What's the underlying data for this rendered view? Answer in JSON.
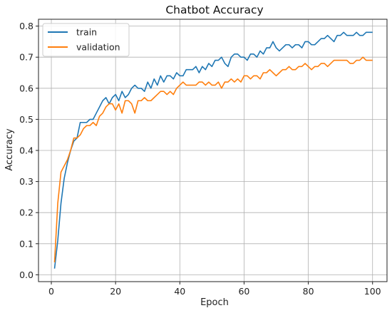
{
  "chart_data": {
    "type": "line",
    "title": "Chatbot Accuracy",
    "xlabel": "Epoch",
    "ylabel": "Accuracy",
    "xlim": [
      -4,
      104.5
    ],
    "ylim": [
      -0.022,
      0.822
    ],
    "xticks": [
      0,
      20,
      40,
      60,
      80,
      100
    ],
    "yticks": [
      0.0,
      0.1,
      0.2,
      0.3,
      0.4,
      0.5,
      0.6,
      0.7,
      0.8
    ],
    "grid": true,
    "legend_position": "top-left",
    "colors": {
      "train": "#1f77b4",
      "validation": "#ff7f0e"
    },
    "x": [
      1,
      2,
      3,
      4,
      5,
      6,
      7,
      8,
      9,
      10,
      11,
      12,
      13,
      14,
      15,
      16,
      17,
      18,
      19,
      20,
      21,
      22,
      23,
      24,
      25,
      26,
      27,
      28,
      29,
      30,
      31,
      32,
      33,
      34,
      35,
      36,
      37,
      38,
      39,
      40,
      41,
      42,
      43,
      44,
      45,
      46,
      47,
      48,
      49,
      50,
      51,
      52,
      53,
      54,
      55,
      56,
      57,
      58,
      59,
      60,
      61,
      62,
      63,
      64,
      65,
      66,
      67,
      68,
      69,
      70,
      71,
      72,
      73,
      74,
      75,
      76,
      77,
      78,
      79,
      80,
      81,
      82,
      83,
      84,
      85,
      86,
      87,
      88,
      89,
      90,
      91,
      92,
      93,
      94,
      95,
      96,
      97,
      98,
      99,
      100
    ],
    "series": [
      {
        "name": "train",
        "values": [
          0.02,
          0.11,
          0.23,
          0.31,
          0.36,
          0.4,
          0.43,
          0.44,
          0.49,
          0.49,
          0.49,
          0.5,
          0.5,
          0.52,
          0.54,
          0.56,
          0.57,
          0.55,
          0.57,
          0.58,
          0.56,
          0.59,
          0.57,
          0.58,
          0.6,
          0.61,
          0.6,
          0.6,
          0.59,
          0.62,
          0.6,
          0.63,
          0.61,
          0.64,
          0.62,
          0.64,
          0.64,
          0.63,
          0.65,
          0.64,
          0.64,
          0.66,
          0.66,
          0.66,
          0.67,
          0.65,
          0.67,
          0.66,
          0.68,
          0.67,
          0.69,
          0.69,
          0.7,
          0.68,
          0.67,
          0.7,
          0.71,
          0.71,
          0.7,
          0.7,
          0.69,
          0.71,
          0.71,
          0.7,
          0.72,
          0.71,
          0.73,
          0.73,
          0.75,
          0.73,
          0.72,
          0.73,
          0.74,
          0.74,
          0.73,
          0.74,
          0.74,
          0.73,
          0.75,
          0.75,
          0.74,
          0.74,
          0.75,
          0.76,
          0.76,
          0.77,
          0.76,
          0.75,
          0.77,
          0.77,
          0.78,
          0.77,
          0.77,
          0.77,
          0.78,
          0.77,
          0.77,
          0.78,
          0.78,
          0.78
        ]
      },
      {
        "name": "validation",
        "values": [
          0.04,
          0.23,
          0.33,
          0.35,
          0.37,
          0.4,
          0.44,
          0.44,
          0.45,
          0.47,
          0.48,
          0.48,
          0.49,
          0.48,
          0.51,
          0.52,
          0.54,
          0.55,
          0.55,
          0.53,
          0.55,
          0.52,
          0.56,
          0.56,
          0.55,
          0.52,
          0.56,
          0.56,
          0.57,
          0.56,
          0.56,
          0.57,
          0.58,
          0.59,
          0.59,
          0.58,
          0.59,
          0.58,
          0.6,
          0.61,
          0.62,
          0.61,
          0.61,
          0.61,
          0.61,
          0.62,
          0.62,
          0.61,
          0.62,
          0.61,
          0.61,
          0.62,
          0.6,
          0.62,
          0.62,
          0.63,
          0.62,
          0.63,
          0.62,
          0.64,
          0.64,
          0.63,
          0.64,
          0.64,
          0.63,
          0.65,
          0.65,
          0.66,
          0.65,
          0.64,
          0.65,
          0.66,
          0.66,
          0.67,
          0.66,
          0.66,
          0.67,
          0.67,
          0.68,
          0.67,
          0.66,
          0.67,
          0.67,
          0.68,
          0.68,
          0.67,
          0.68,
          0.69,
          0.69,
          0.69,
          0.69,
          0.69,
          0.68,
          0.68,
          0.69,
          0.69,
          0.7,
          0.69,
          0.69,
          0.69
        ]
      }
    ]
  }
}
